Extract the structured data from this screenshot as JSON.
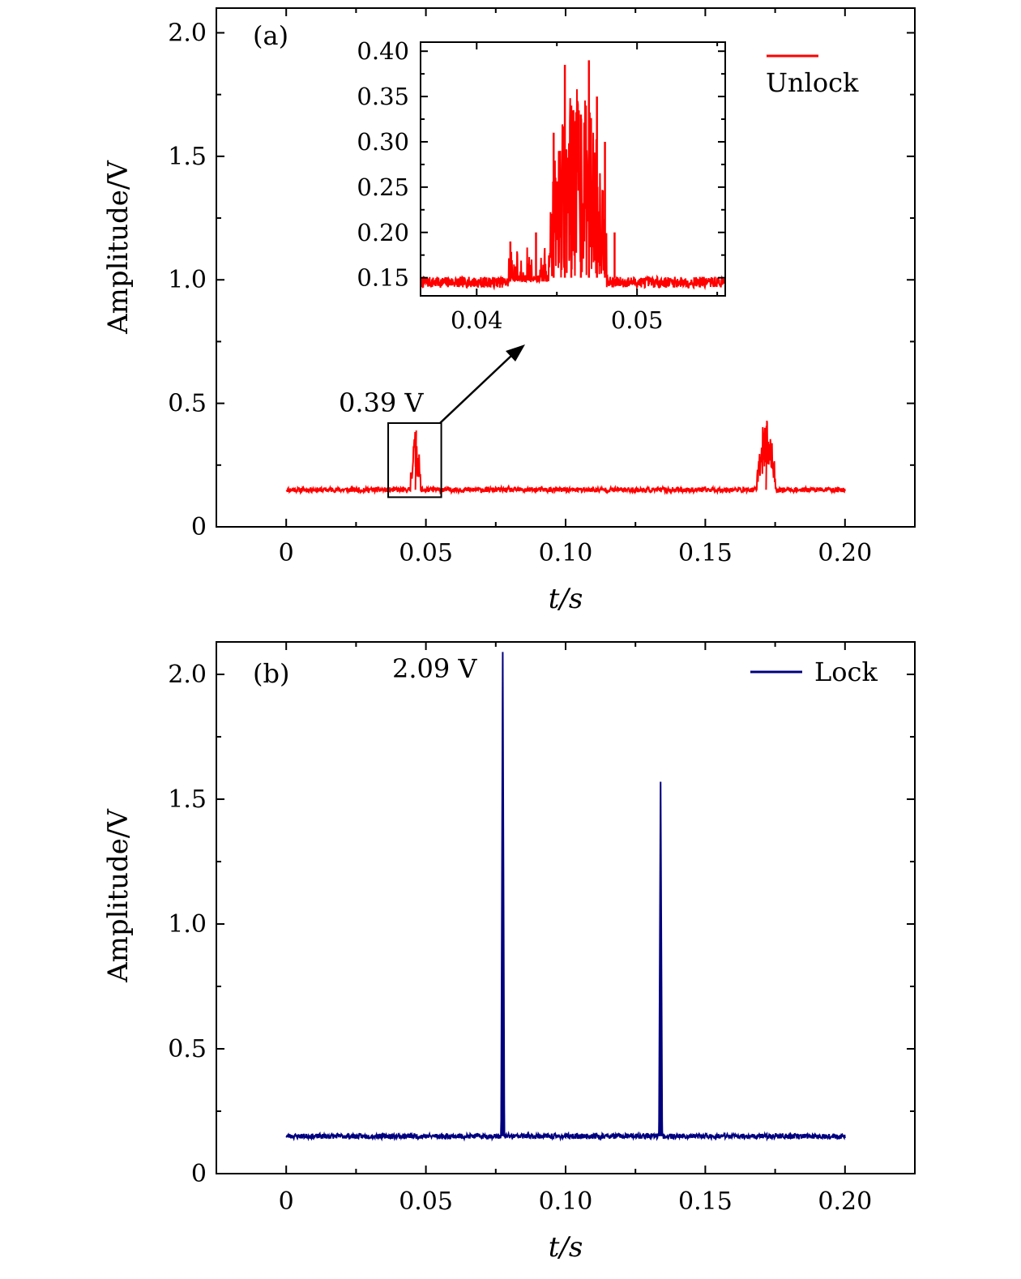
{
  "colors": {
    "unlock": "#ff0000",
    "lock": "#00007f",
    "axis": "#000000"
  },
  "chart_data": [
    {
      "type": "line",
      "panel_label": "(a)",
      "xlabel": "t/s",
      "ylabel": "Amplitude/V",
      "xlim": [
        -0.025,
        0.225
      ],
      "ylim": [
        0,
        2.1
      ],
      "xticks": [
        0,
        0.05,
        0.1,
        0.15,
        0.2
      ],
      "xtick_labels": [
        "0",
        "0.05",
        "0.10",
        "0.15",
        "0.20"
      ],
      "yticks": [
        0,
        0.5,
        1.0,
        1.5,
        2.0
      ],
      "ytick_labels": [
        "0",
        "0.5",
        "1.0",
        "1.5",
        "2.0"
      ],
      "grid": false,
      "legend": "top-right",
      "series": [
        {
          "name": "Unlock",
          "color": "#ff0000",
          "baseline": 0.15,
          "x_range": [
            0,
            0.2
          ],
          "bursts": [
            {
              "start": 0.0445,
              "end": 0.048,
              "peak": 0.39
            },
            {
              "start": 0.1685,
              "end": 0.175,
              "peak": 0.43
            }
          ]
        }
      ],
      "annotations": [
        {
          "text": "0.39 V",
          "x": 0.046,
          "y": 0.39
        }
      ],
      "zoom_box": {
        "x": [
          0.0365,
          0.0555
        ],
        "y": [
          0.12,
          0.42
        ]
      },
      "inset": {
        "type": "line",
        "xlim": [
          0.0365,
          0.0555
        ],
        "ylim": [
          0.13,
          0.41
        ],
        "xticks": [
          0.04,
          0.05
        ],
        "xtick_labels": [
          "0.04",
          "0.05"
        ],
        "yticks": [
          0.15,
          0.2,
          0.25,
          0.3,
          0.35,
          0.4
        ],
        "ytick_labels": [
          "0.15",
          "0.20",
          "0.25",
          "0.30",
          "0.35",
          "0.40"
        ],
        "highlight_peaks": [
          {
            "x": 0.0421,
            "y": 0.19
          },
          {
            "x": 0.0437,
            "y": 0.2
          },
          {
            "x": 0.0448,
            "y": 0.31
          },
          {
            "x": 0.0455,
            "y": 0.385
          },
          {
            "x": 0.0459,
            "y": 0.34
          },
          {
            "x": 0.0465,
            "y": 0.33
          },
          {
            "x": 0.047,
            "y": 0.39
          },
          {
            "x": 0.0475,
            "y": 0.35
          },
          {
            "x": 0.048,
            "y": 0.3
          },
          {
            "x": 0.0486,
            "y": 0.2
          }
        ]
      }
    },
    {
      "type": "line",
      "panel_label": "(b)",
      "xlabel": "t/s",
      "ylabel": "Amplitude/V",
      "xlim": [
        -0.025,
        0.225
      ],
      "ylim": [
        0,
        2.13
      ],
      "xticks": [
        0,
        0.05,
        0.1,
        0.15,
        0.2
      ],
      "xtick_labels": [
        "0",
        "0.05",
        "0.10",
        "0.15",
        "0.20"
      ],
      "yticks": [
        0,
        0.5,
        1.0,
        1.5,
        2.0
      ],
      "ytick_labels": [
        "0",
        "0.5",
        "1.0",
        "1.5",
        "2.0"
      ],
      "grid": false,
      "legend": "top-right",
      "series": [
        {
          "name": "Lock",
          "color": "#00007f",
          "baseline": 0.15,
          "x_range": [
            0,
            0.2
          ],
          "peaks": [
            {
              "x": 0.0775,
              "y": 2.09
            },
            {
              "x": 0.134,
              "y": 1.57
            }
          ]
        }
      ],
      "annotations": [
        {
          "text": "2.09 V",
          "x": 0.0775,
          "y": 2.09
        }
      ]
    }
  ]
}
